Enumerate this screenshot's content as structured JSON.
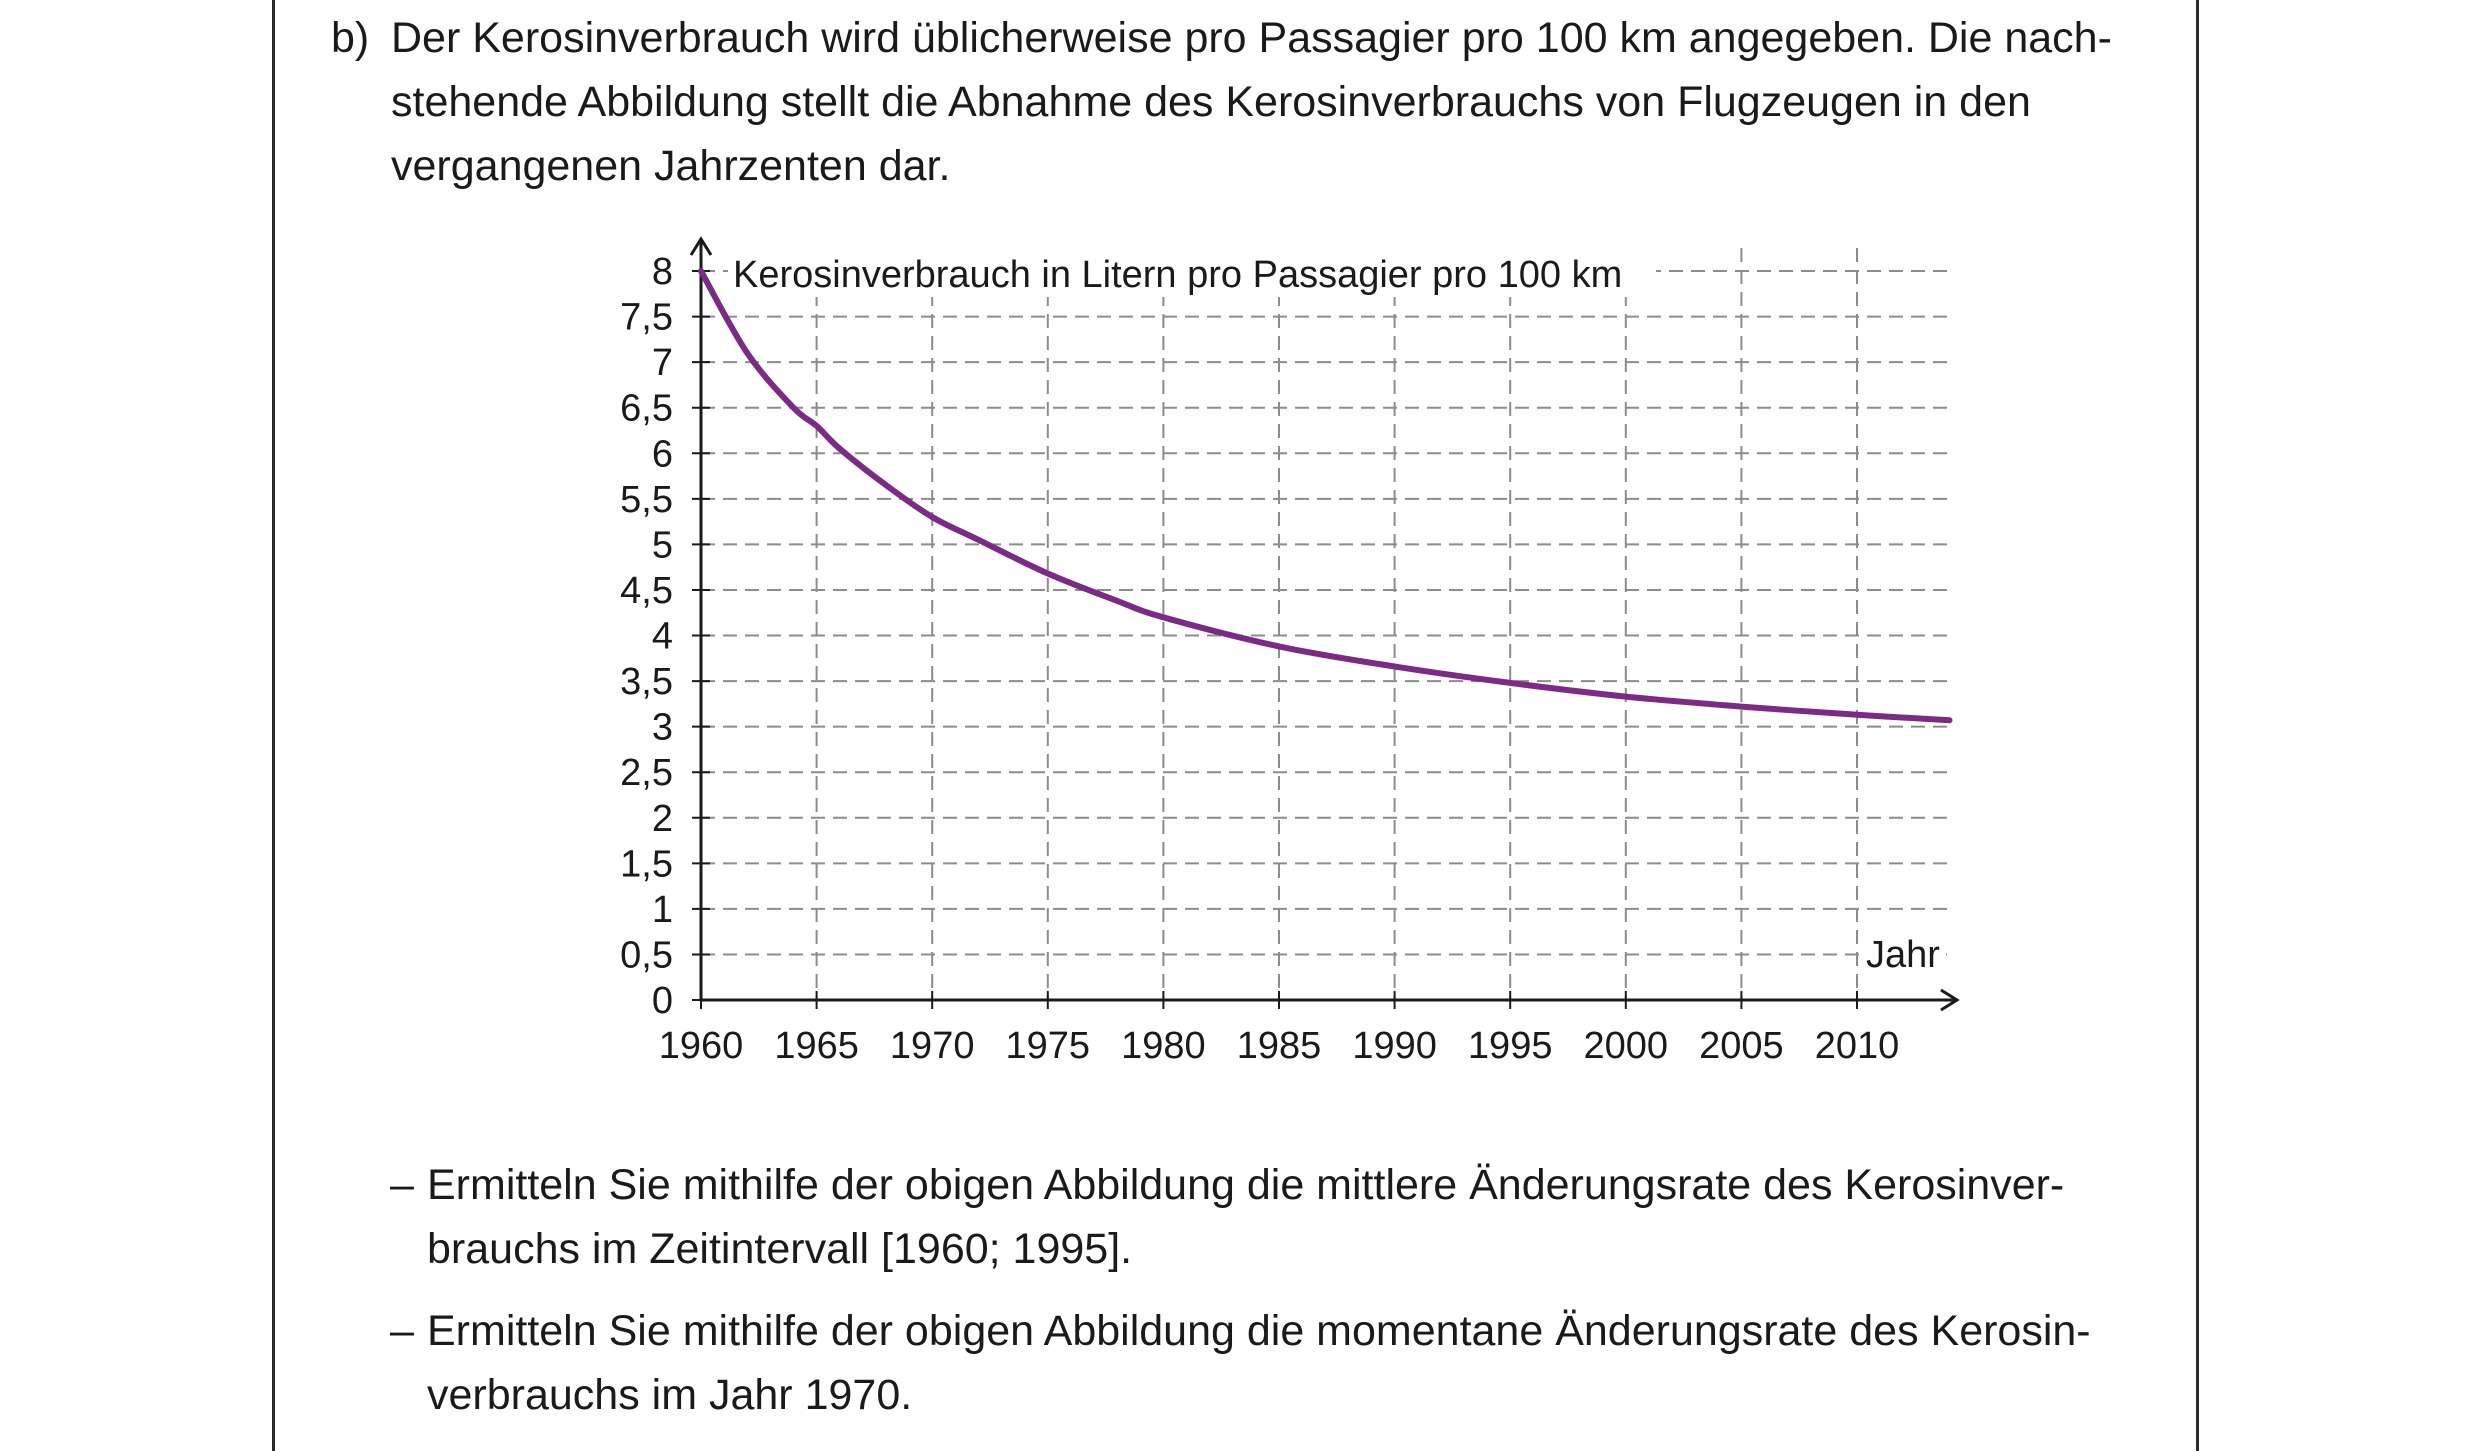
{
  "task": {
    "label": "b)",
    "intro_lines": [
      "Der Kerosinverbrauch wird üblicherweise pro Passagier pro 100 km angegeben. Die nach-",
      "stehende Abbildung stellt die Abnahme des Kerosinverbrauchs von Flugzeugen in den",
      "vergangenen Jahrzenten dar."
    ]
  },
  "chart_data": {
    "type": "line",
    "title": "",
    "ylabel": "Kerosinverbrauch in Litern pro Passagier pro 100 km",
    "xlabel": "Jahr",
    "xlim": [
      1960,
      2014
    ],
    "ylim": [
      0,
      8
    ],
    "x_ticks": [
      1960,
      1965,
      1970,
      1975,
      1980,
      1985,
      1990,
      1995,
      2000,
      2005,
      2010
    ],
    "x_tick_labels": [
      "1960",
      "1965",
      "1970",
      "1975",
      "1980",
      "1985",
      "1990",
      "1995",
      "2000",
      "2005",
      "2010"
    ],
    "y_ticks": [
      0,
      0.5,
      1,
      1.5,
      2,
      2.5,
      3,
      3.5,
      4,
      4.5,
      5,
      5.5,
      6,
      6.5,
      7,
      7.5,
      8
    ],
    "y_tick_labels": [
      "0",
      "0,5",
      "1",
      "1,5",
      "2",
      "2,5",
      "3",
      "3,5",
      "4",
      "4,5",
      "5",
      "5,5",
      "6",
      "6,5",
      "7",
      "7,5",
      "8"
    ],
    "grid": "dashed",
    "series": [
      {
        "color": "#7b2a86",
        "x": [
          1960,
          1962,
          1964,
          1965,
          1966,
          1968,
          1970,
          1972,
          1975,
          1978,
          1980,
          1985,
          1990,
          1995,
          2000,
          2005,
          2010,
          2014
        ],
        "y": [
          8.0,
          7.1,
          6.5,
          6.3,
          6.05,
          5.65,
          5.3,
          5.05,
          4.68,
          4.38,
          4.2,
          3.88,
          3.66,
          3.48,
          3.33,
          3.22,
          3.13,
          3.07
        ]
      }
    ]
  },
  "questions": [
    {
      "dash": "–",
      "lines": [
        "Ermitteln Sie mithilfe der obigen Abbildung die mittlere Änderungsrate des Kerosinver-",
        "brauchs im Zeitintervall [1960; 1995]."
      ]
    },
    {
      "dash": "–",
      "lines": [
        "Ermitteln Sie mithilfe der obigen Abbildung die momentane Änderungsrate des Kerosin-",
        "verbrauchs im Jahr 1970."
      ]
    }
  ]
}
